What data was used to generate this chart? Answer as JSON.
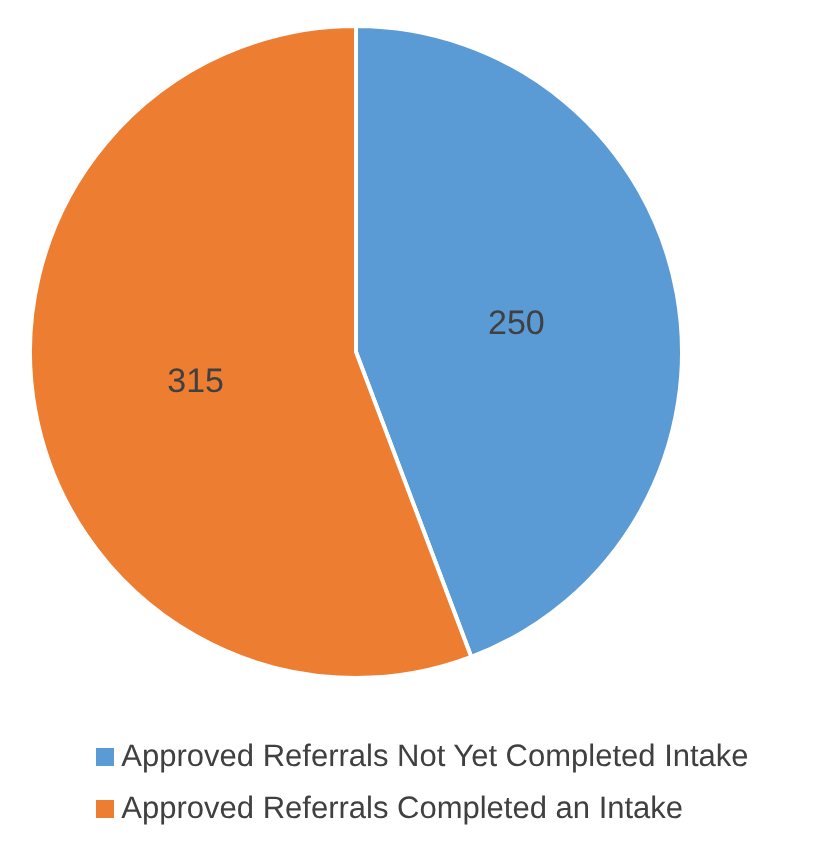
{
  "chart_data": {
    "type": "pie",
    "categories": [
      "Approved Referrals Not Yet Completed Intake",
      "Approved Referrals Completed an Intake"
    ],
    "values": [
      250,
      315
    ],
    "colors": [
      "#5b9bd5",
      "#ed7d31"
    ],
    "data_labels": true,
    "legend": "bottom"
  }
}
